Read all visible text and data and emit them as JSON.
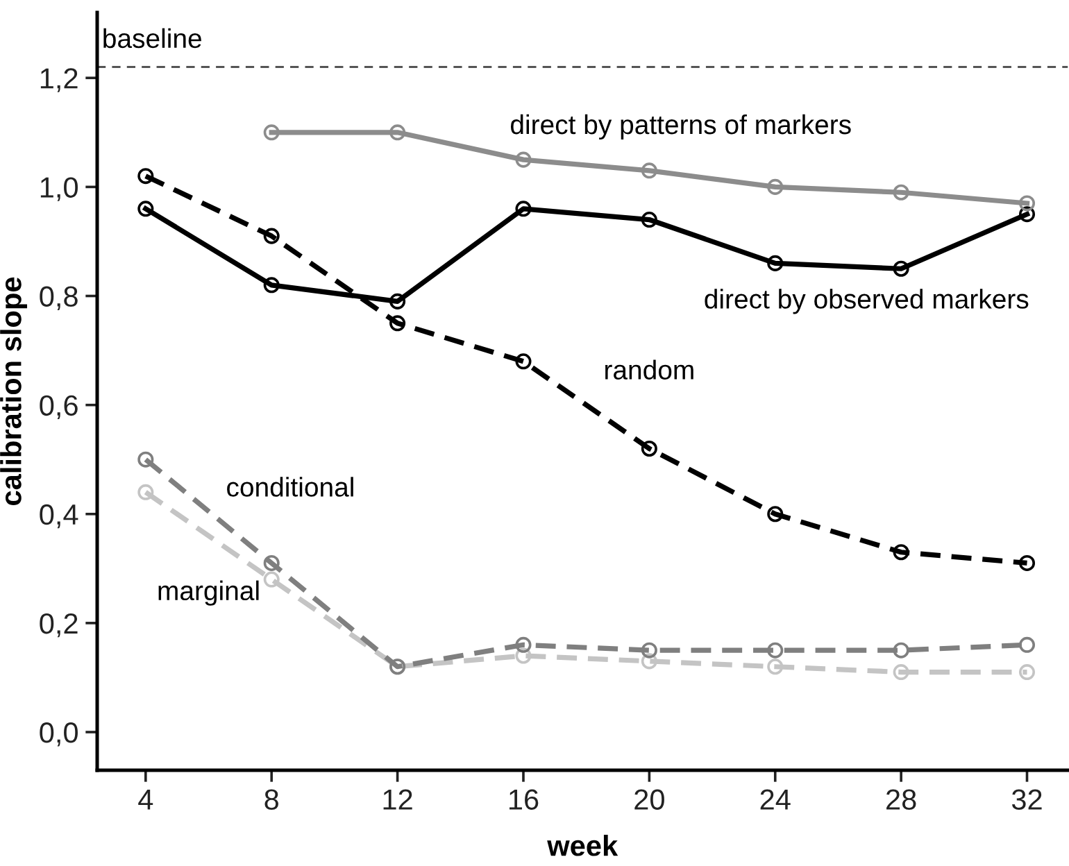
{
  "chart_data": {
    "type": "line",
    "xlabel": "week",
    "ylabel": "calibration slope",
    "x": [
      4,
      8,
      12,
      16,
      20,
      24,
      28,
      32
    ],
    "xlim": [
      2.46,
      33.3
    ],
    "xticks": [
      4,
      8,
      12,
      16,
      20,
      24,
      28,
      32
    ],
    "ylim": [
      -0.07,
      1.32
    ],
    "yticks": [
      {
        "value": 0,
        "label": "0,0"
      },
      {
        "value": 0.2,
        "label": "0,2"
      },
      {
        "value": 0.4,
        "label": "0,4"
      },
      {
        "value": 0.6,
        "label": "0,6"
      },
      {
        "value": 0.8,
        "label": "0,8"
      },
      {
        "value": 1.0,
        "label": "1,0"
      },
      {
        "value": 1.2,
        "label": "1,2"
      }
    ],
    "grid": false,
    "legend": false,
    "marker": "circle",
    "ref_lines": [
      {
        "axis": "y",
        "value": 1.22,
        "label": "baseline",
        "color": "#555555",
        "line_style": "dashed"
      }
    ],
    "series": [
      {
        "name": "direct by patterns of markers",
        "color": "#8c8c8c",
        "line_style": "solid",
        "values": [
          null,
          1.1,
          1.1,
          1.05,
          1.03,
          1.0,
          0.99,
          0.97
        ]
      },
      {
        "name": "direct by observed markers",
        "color": "#000000",
        "line_style": "solid",
        "values": [
          0.96,
          0.82,
          0.79,
          0.96,
          0.94,
          0.86,
          0.85,
          0.95
        ]
      },
      {
        "name": "random",
        "color": "#000000",
        "line_style": "dashed",
        "values": [
          1.02,
          0.91,
          0.75,
          0.68,
          0.52,
          0.4,
          0.33,
          0.31
        ]
      },
      {
        "name": "conditional",
        "color": "#7f7f7f",
        "line_style": "dashed",
        "values": [
          0.5,
          0.31,
          0.12,
          0.16,
          0.15,
          0.15,
          0.15,
          0.16
        ]
      },
      {
        "name": "marginal",
        "color": "#c4c4c4",
        "line_style": "dashed",
        "values": [
          0.44,
          0.28,
          0.12,
          0.14,
          0.13,
          0.12,
          0.11,
          0.11
        ]
      }
    ]
  }
}
